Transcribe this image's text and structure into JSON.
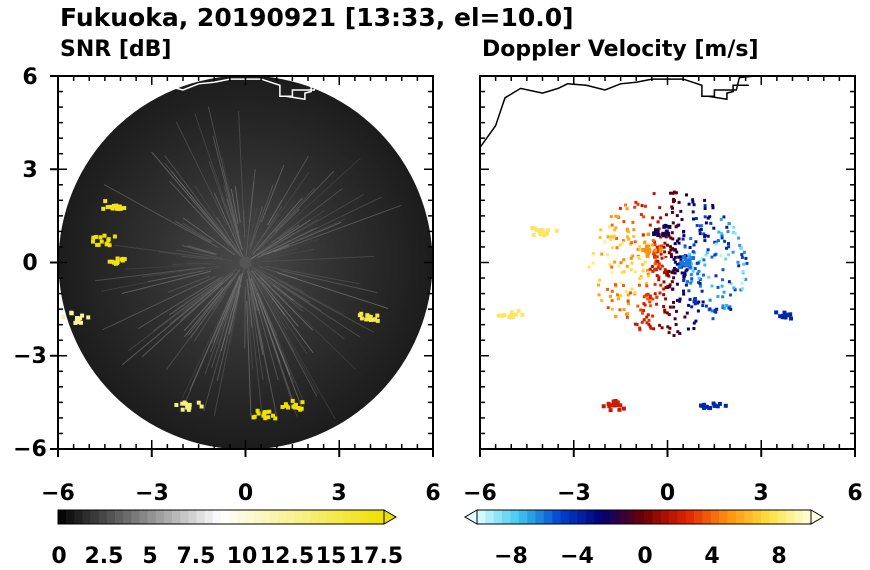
{
  "figure": {
    "title": "Fukuoka, 20190921 [13:33, el=10.0]"
  },
  "chart_data": [
    {
      "type": "heatmap",
      "title": "SNR [dB]",
      "xlim": [
        -6,
        6
      ],
      "ylim": [
        -6,
        6
      ],
      "xticks": [
        "−6",
        "−3",
        "0",
        "3",
        "6"
      ],
      "yticks": [
        "6",
        "3",
        "0",
        "−3",
        "−6"
      ],
      "range_max": 6,
      "background": "#333333",
      "coastline_color": "#ffffff",
      "colorbar": {
        "min": 0,
        "max": 18.5,
        "extend": "max",
        "colors": [
          "#000000",
          "#ffffff",
          "#f0e000"
        ],
        "tick_labels": [
          "0",
          "2.5",
          "5",
          "7.5",
          "10",
          "12.5",
          "15",
          "17.5"
        ]
      },
      "echoes": [
        {
          "x": -4.3,
          "y": 1.8,
          "value": 17.5
        },
        {
          "x": -4.5,
          "y": 0.7,
          "value": 18.5
        },
        {
          "x": -4.2,
          "y": 0.0,
          "value": 18.0
        },
        {
          "x": -5.4,
          "y": -1.8,
          "value": 13
        },
        {
          "x": 4.0,
          "y": -1.8,
          "value": 16
        },
        {
          "x": -1.8,
          "y": -4.6,
          "value": 14
        },
        {
          "x": 1.5,
          "y": -4.6,
          "value": 18.5
        },
        {
          "x": 0.6,
          "y": -4.9,
          "value": 18.5
        }
      ]
    },
    {
      "type": "heatmap",
      "title": "Doppler Velocity [m/s]",
      "xlim": [
        -6,
        6
      ],
      "ylim": [
        -6,
        6
      ],
      "xticks": [
        "−6",
        "−3",
        "0",
        "3",
        "6"
      ],
      "yticks": [],
      "range_max": 6,
      "background": "#ffffff",
      "coastline_color": "#000000",
      "colorbar": {
        "min": -10,
        "max": 10,
        "extend": "both",
        "colors": [
          "#e0ffff",
          "#3ec8f0",
          "#0040d0",
          "#000070",
          "#700000",
          "#e02000",
          "#ff9010",
          "#ffe040",
          "#ffffe0"
        ],
        "tick_labels": [
          "−8",
          "−4",
          "0",
          "4",
          "8"
        ]
      },
      "echoes": [
        {
          "x": -0.6,
          "y": 0.4,
          "value": 5
        },
        {
          "x": -0.15,
          "y": 1.0,
          "value": -2
        },
        {
          "x": 0.5,
          "y": 0.0,
          "value": -6
        },
        {
          "x": -4.0,
          "y": 1.0,
          "value": 8
        },
        {
          "x": -5.0,
          "y": -1.7,
          "value": 8
        },
        {
          "x": 3.7,
          "y": -1.7,
          "value": -4
        },
        {
          "x": -1.7,
          "y": -4.6,
          "value": 2
        },
        {
          "x": 1.5,
          "y": -4.6,
          "value": -4
        }
      ]
    }
  ]
}
